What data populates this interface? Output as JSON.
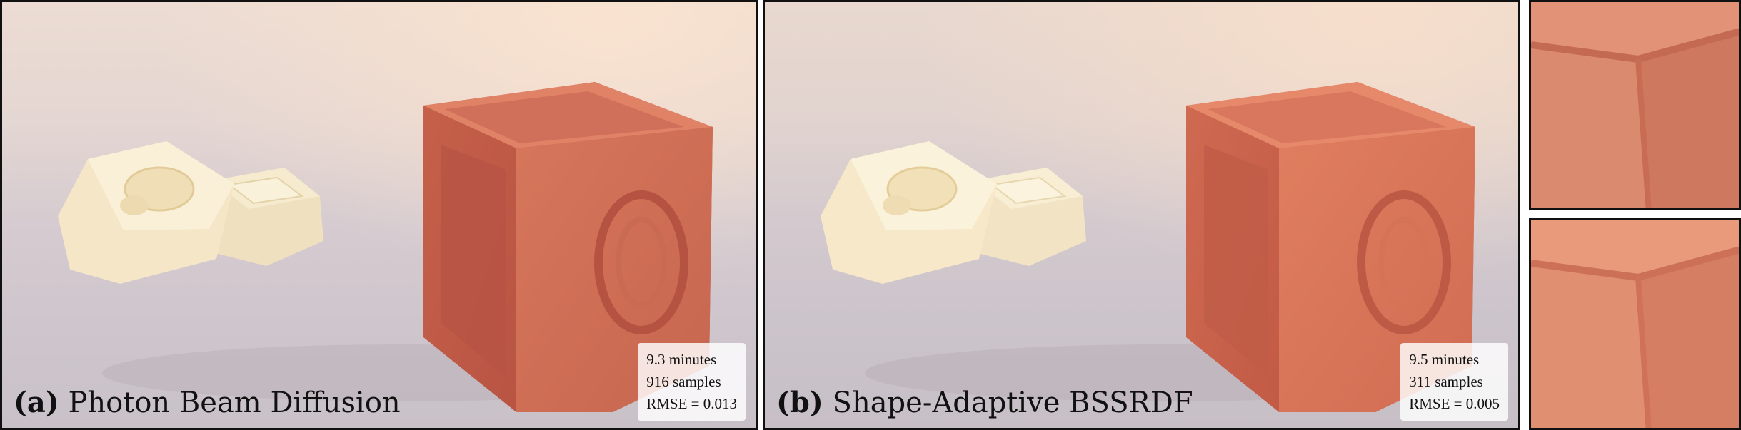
{
  "panels": [
    {
      "tag": "(a)",
      "method": "Photon Beam Diffusion",
      "stats": {
        "time": "9.3 minutes",
        "samples": "916 samples",
        "rmse": "RMSE = 0.013"
      }
    },
    {
      "tag": "(b)",
      "method": "Shape-Adaptive BSSRDF",
      "stats": {
        "time": "9.5 minutes",
        "samples": "311 samples",
        "rmse": "RMSE = 0.005"
      }
    }
  ],
  "colors": {
    "soap_cream": "#f3e6c8",
    "cube_orange": "#d9765a",
    "frame": "#111111"
  }
}
